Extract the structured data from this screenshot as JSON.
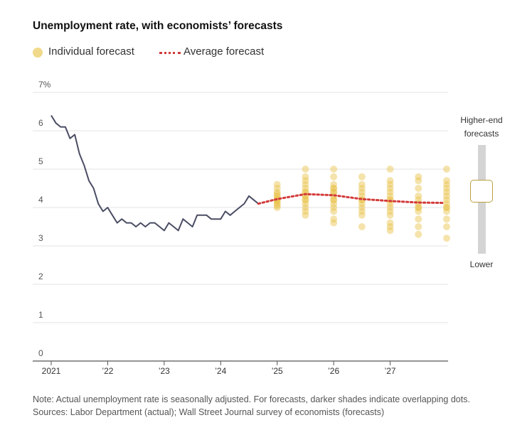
{
  "chart_data": {
    "type": "line",
    "title": "Unemployment rate, with economists’ forecasts",
    "legend": {
      "individual": "Individual forecast",
      "average": "Average forecast"
    },
    "ylim": [
      0,
      7
    ],
    "yticks": [
      0,
      1,
      2,
      3,
      4,
      5,
      6,
      7
    ],
    "ytick_labels": [
      "0",
      "1",
      "2",
      "3",
      "4",
      "5",
      "6",
      "7%"
    ],
    "xlim": [
      2021.0,
      2028.0
    ],
    "xticks": [
      2021,
      2022,
      2023,
      2024,
      2025,
      2026,
      2027
    ],
    "xtick_labels": [
      "2021",
      "’22",
      "’23",
      "’24",
      "’25",
      "’26",
      "’27"
    ],
    "actual": {
      "name": "Actual",
      "x": [
        2021.0,
        2021.083,
        2021.167,
        2021.25,
        2021.333,
        2021.417,
        2021.5,
        2021.583,
        2021.667,
        2021.75,
        2021.833,
        2021.917,
        2022.0,
        2022.083,
        2022.167,
        2022.25,
        2022.333,
        2022.417,
        2022.5,
        2022.583,
        2022.667,
        2022.75,
        2022.833,
        2022.917,
        2023.0,
        2023.083,
        2023.167,
        2023.25,
        2023.333,
        2023.417,
        2023.5,
        2023.583,
        2023.667,
        2023.75,
        2023.833,
        2023.917,
        2024.0,
        2024.083,
        2024.167,
        2024.25,
        2024.333,
        2024.417,
        2024.5,
        2024.583,
        2024.667
      ],
      "values": [
        6.4,
        6.2,
        6.1,
        6.1,
        5.8,
        5.9,
        5.4,
        5.1,
        4.7,
        4.5,
        4.1,
        3.9,
        4.0,
        3.8,
        3.6,
        3.7,
        3.6,
        3.6,
        3.5,
        3.6,
        3.5,
        3.6,
        3.6,
        3.5,
        3.4,
        3.6,
        3.5,
        3.4,
        3.7,
        3.6,
        3.5,
        3.8,
        3.8,
        3.8,
        3.7,
        3.7,
        3.7,
        3.9,
        3.8,
        3.9,
        4.0,
        4.1,
        4.3,
        4.2,
        4.1
      ]
    },
    "average_forecast": {
      "name": "Average forecast",
      "x": [
        2024.667,
        2025.0,
        2025.5,
        2026.0,
        2026.5,
        2027.0,
        2027.5,
        2027.95
      ],
      "values": [
        4.1,
        4.22,
        4.35,
        4.32,
        4.22,
        4.17,
        4.13,
        4.12
      ]
    },
    "individual_forecasts": [
      {
        "x": 2025.0,
        "values": [
          4.0,
          4.05,
          4.1,
          4.15,
          4.2,
          4.2,
          4.25,
          4.3,
          4.35,
          4.4,
          4.5,
          4.6
        ]
      },
      {
        "x": 2025.5,
        "values": [
          3.8,
          3.9,
          4.0,
          4.1,
          4.2,
          4.2,
          4.3,
          4.3,
          4.4,
          4.4,
          4.5,
          4.6,
          4.7,
          4.8,
          5.0
        ]
      },
      {
        "x": 2026.0,
        "values": [
          3.6,
          3.7,
          3.9,
          4.0,
          4.1,
          4.2,
          4.2,
          4.3,
          4.4,
          4.4,
          4.5,
          4.5,
          4.6,
          4.8,
          5.0
        ]
      },
      {
        "x": 2026.5,
        "values": [
          3.5,
          3.8,
          3.9,
          4.0,
          4.1,
          4.2,
          4.2,
          4.3,
          4.4,
          4.5,
          4.6,
          4.8
        ]
      },
      {
        "x": 2027.0,
        "values": [
          3.4,
          3.5,
          3.6,
          3.8,
          3.9,
          4.0,
          4.1,
          4.2,
          4.2,
          4.3,
          4.4,
          4.5,
          4.6,
          4.7,
          5.0
        ]
      },
      {
        "x": 2027.5,
        "values": [
          3.3,
          3.5,
          3.7,
          3.9,
          4.0,
          4.0,
          4.1,
          4.2,
          4.3,
          4.5,
          4.7,
          4.8
        ]
      },
      {
        "x": 2028.0,
        "values": [
          3.2,
          3.5,
          3.7,
          3.9,
          4.0,
          4.0,
          4.1,
          4.2,
          4.3,
          4.4,
          4.5,
          4.6,
          4.7,
          5.0
        ]
      }
    ],
    "colors": {
      "actual": "#4a4d63",
      "average": "#d33a3a",
      "dot": "#e8c046",
      "legend_dot": "#f0d98a",
      "grid": "#e3e3e3"
    }
  },
  "slider": {
    "high_label": "Higher-end forecasts",
    "low_label": "Lower"
  },
  "footer": {
    "note": "Note: Actual unemployment rate is seasonally adjusted. For forecasts, darker shades indicate overlapping dots.",
    "sources": "Sources: Labor Department (actual); Wall Street Journal survey of economists (forecasts)"
  }
}
